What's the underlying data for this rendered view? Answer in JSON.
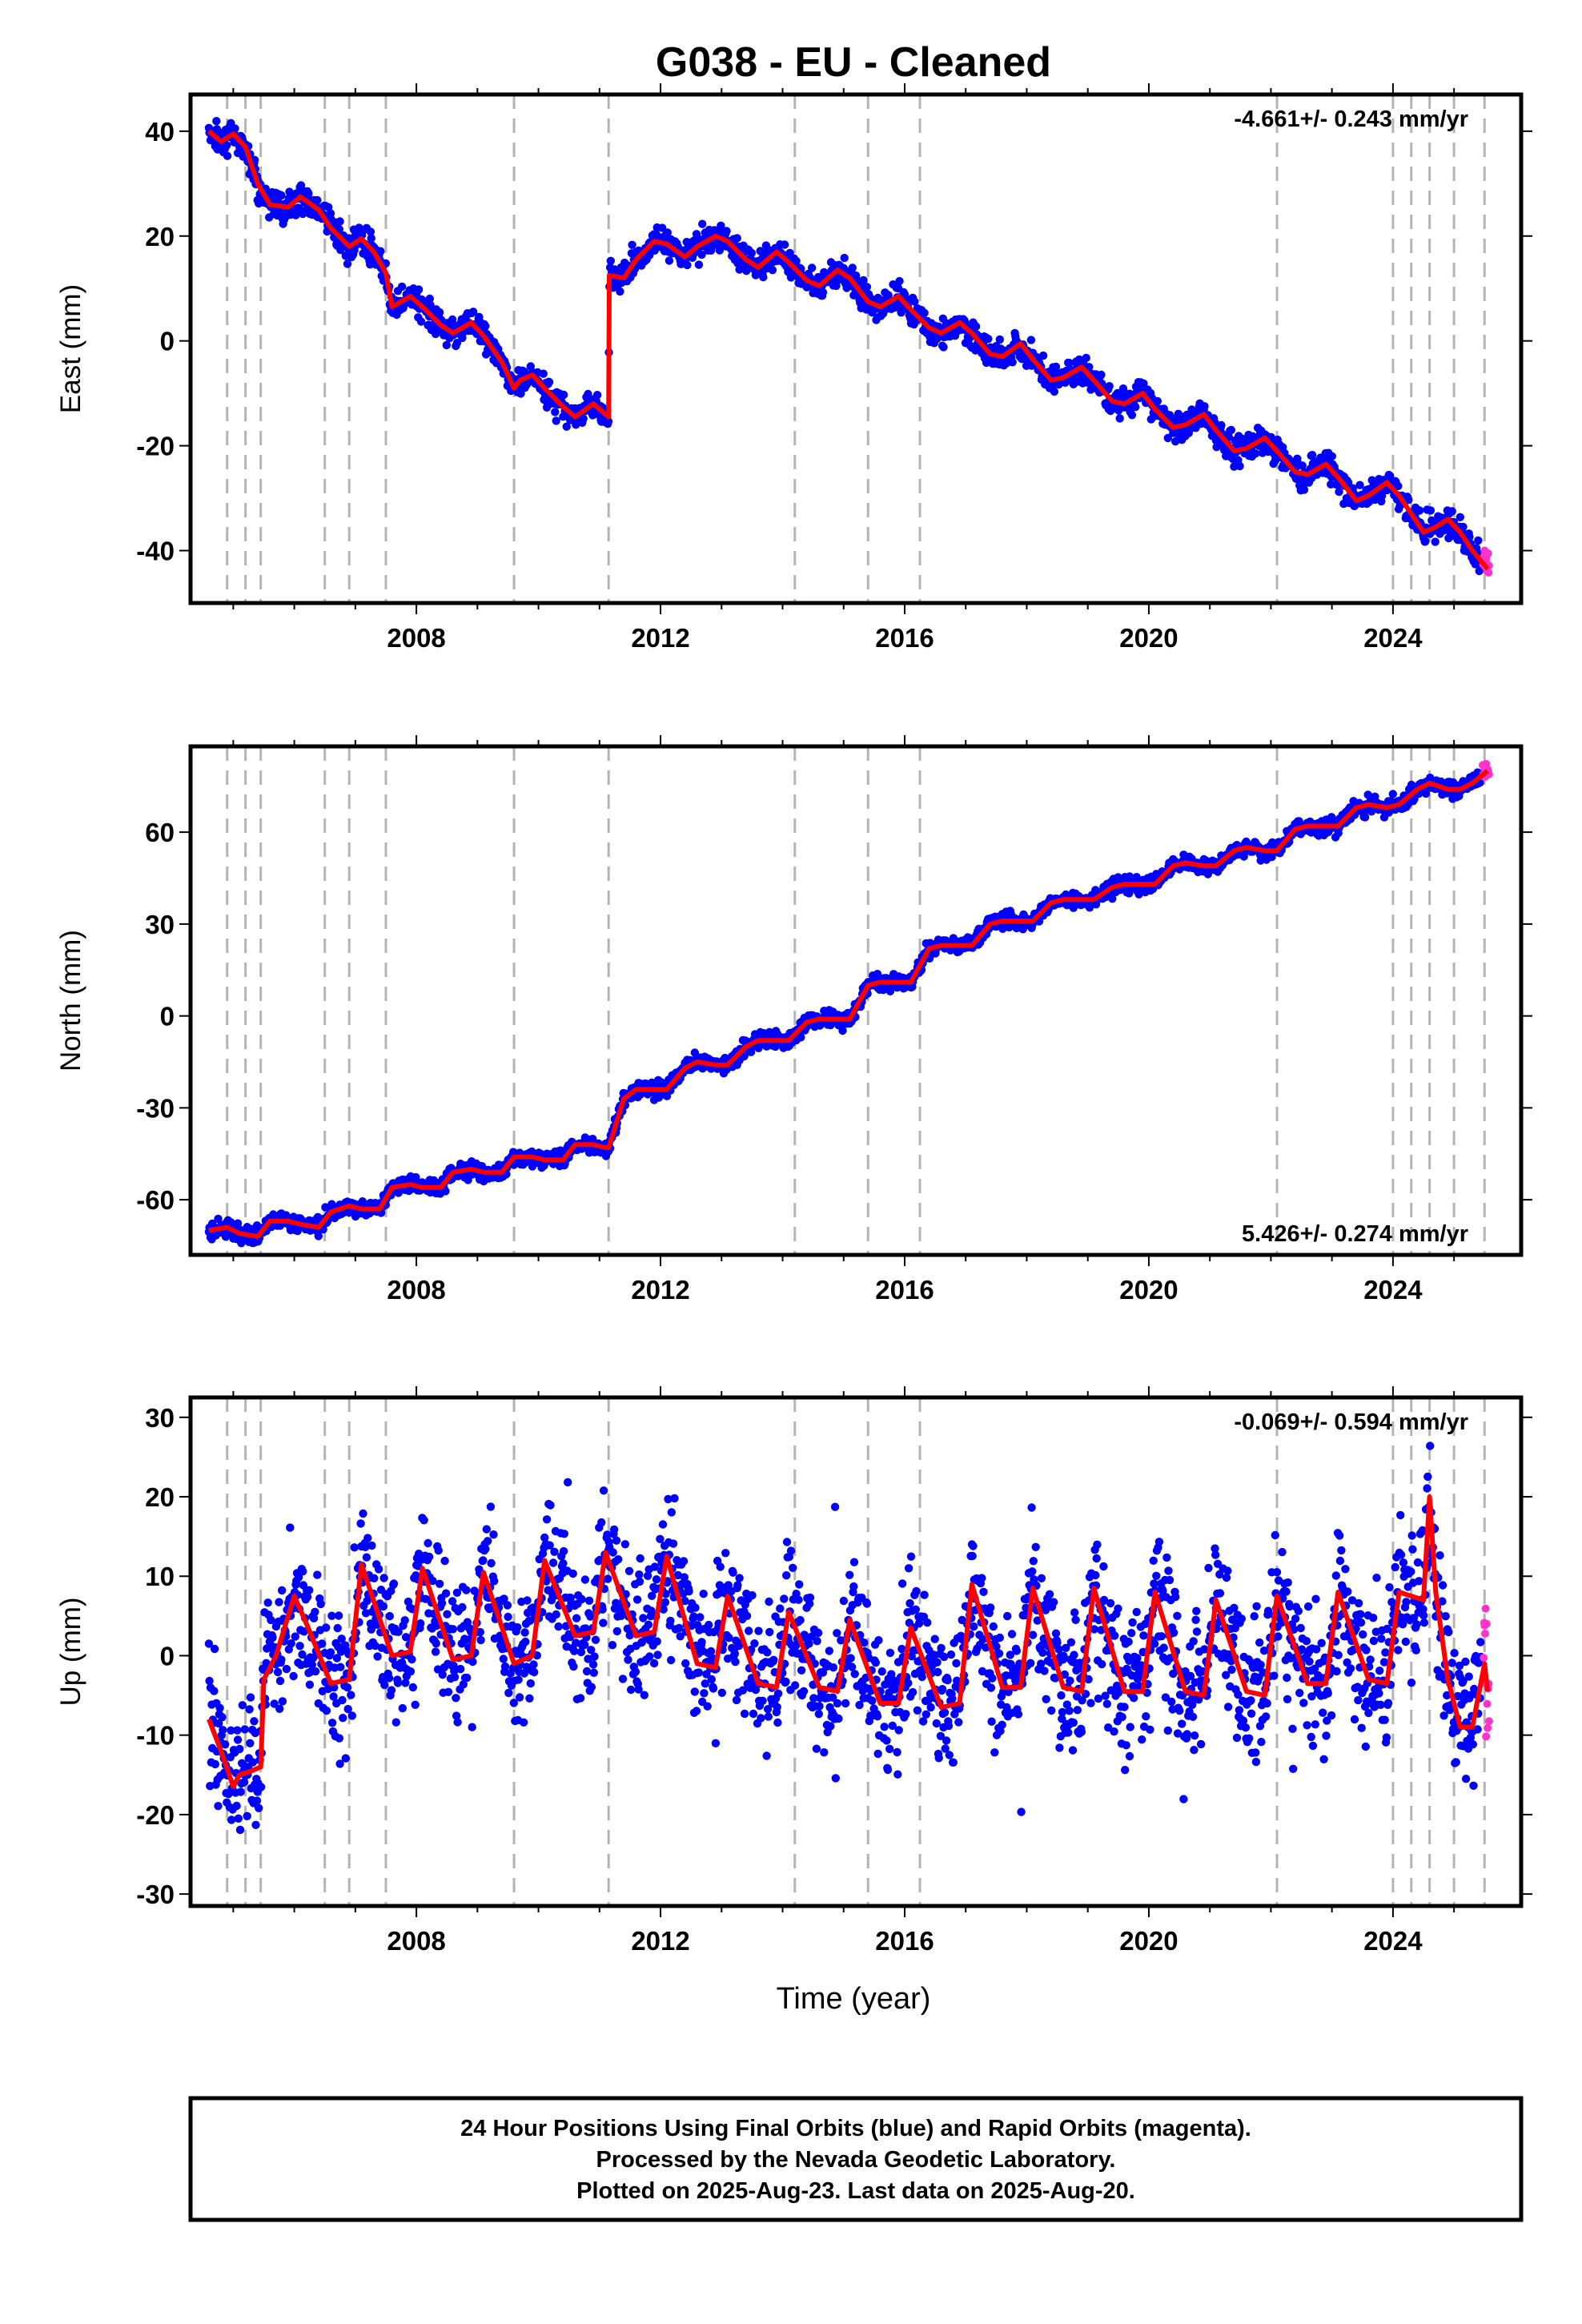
{
  "figure": {
    "title": "G038  - EU - Cleaned",
    "footer": [
      "24 Hour Positions Using Final Orbits (blue) and Rapid Orbits (magenta).",
      "Processed by the Nevada Geodetic Laboratory.",
      "Plotted on 2025-Aug-23. Last data on 2025-Aug-20."
    ]
  },
  "colors": {
    "final_points": "#0000ff",
    "rapid_points": "#ff33cc",
    "model_line": "#ff0000",
    "event_lines": "#b4b4b4",
    "axes": "#000000"
  },
  "chart_data": [
    {
      "type": "scatter",
      "component": "East",
      "ylabel": "East (mm)",
      "xlabel": "",
      "xlim": [
        2004.3,
        2026.1
      ],
      "ylim": [
        -50,
        47
      ],
      "xticks": [
        2008,
        2012,
        2016,
        2020,
        2024
      ],
      "xtick_labels": [
        "2008",
        "2012",
        "2016",
        "2020",
        "2024"
      ],
      "yticks": [
        40,
        20,
        0,
        -20,
        -40
      ],
      "ytick_labels": [
        "40",
        "20",
        "0",
        "-20",
        "-40"
      ],
      "rate_label": "-4.661+/- 0.243 mm/yr",
      "rate_position": "top-right",
      "event_lines": [
        2004.9,
        2005.2,
        2005.45,
        2006.5,
        2006.9,
        2007.5,
        2009.6,
        2011.15,
        2014.2,
        2015.4,
        2016.25,
        2022.1,
        2024.0,
        2024.3,
        2024.6,
        2025.0,
        2025.5
      ],
      "series": [
        {
          "role": "model",
          "x": [
            2004.6,
            2004.8,
            2005.0,
            2005.2,
            2005.4,
            2005.6,
            2005.9,
            2006.1,
            2006.4,
            2006.6,
            2006.9,
            2007.1,
            2007.3,
            2007.5,
            2007.6,
            2007.9,
            2008.1,
            2008.4,
            2008.6,
            2008.9,
            2009.1,
            2009.4,
            2009.6,
            2009.7,
            2009.9,
            2010.1,
            2010.4,
            2010.6,
            2010.9,
            2011.1,
            2011.15,
            2011.16,
            2011.4,
            2011.6,
            2011.9,
            2012.1,
            2012.4,
            2012.6,
            2012.9,
            2013.1,
            2013.4,
            2013.6,
            2013.9,
            2014.1,
            2014.4,
            2014.6,
            2014.9,
            2015.1,
            2015.4,
            2015.6,
            2015.9,
            2016.1,
            2016.4,
            2016.6,
            2016.9,
            2017.1,
            2017.4,
            2017.6,
            2017.9,
            2018.1,
            2018.4,
            2018.6,
            2018.9,
            2019.1,
            2019.4,
            2019.6,
            2019.9,
            2020.1,
            2020.4,
            2020.6,
            2020.9,
            2021.1,
            2021.4,
            2021.6,
            2021.9,
            2022.1,
            2022.4,
            2022.6,
            2022.9,
            2023.1,
            2023.4,
            2023.6,
            2023.9,
            2024.1,
            2024.3,
            2024.5,
            2024.7,
            2024.9,
            2025.1,
            2025.3,
            2025.55
          ],
          "y": [
            40,
            38,
            39.5,
            37,
            30,
            26,
            25.5,
            27.5,
            25,
            21.5,
            18,
            19.5,
            17,
            13,
            6.5,
            8.5,
            6.5,
            3,
            1.5,
            3.5,
            1,
            -4,
            -9,
            -7.5,
            -6.5,
            -9,
            -12.5,
            -14.5,
            -12,
            -14,
            -14.5,
            12.5,
            12,
            15.5,
            19,
            18.5,
            16,
            18,
            20,
            19,
            15.5,
            14,
            17,
            15,
            11.5,
            10.5,
            13.5,
            12,
            7.5,
            6.5,
            8.5,
            6,
            2.5,
            1.5,
            3.5,
            1.5,
            -2.5,
            -3,
            -0.5,
            -3.5,
            -7.5,
            -7,
            -5,
            -7.5,
            -11.5,
            -12,
            -10,
            -13,
            -16.5,
            -16,
            -14,
            -17,
            -21,
            -20.5,
            -18.5,
            -21,
            -25,
            -25.5,
            -23.5,
            -26,
            -30.5,
            -29.5,
            -27,
            -29.5,
            -33,
            -36.5,
            -35.5,
            -34,
            -36.5,
            -40,
            -43.5
          ]
        }
      ]
    },
    {
      "type": "scatter",
      "component": "North",
      "ylabel": "North (mm)",
      "xlabel": "",
      "xlim": [
        2004.3,
        2026.1
      ],
      "ylim": [
        -78,
        88
      ],
      "xticks": [
        2008,
        2012,
        2016,
        2020,
        2024
      ],
      "xtick_labels": [
        "2008",
        "2012",
        "2016",
        "2020",
        "2024"
      ],
      "yticks": [
        60,
        30,
        0,
        -30,
        -60
      ],
      "ytick_labels": [
        "60",
        "30",
        "0",
        "-30",
        "-60"
      ],
      "rate_label": "5.426+/- 0.274 mm/yr",
      "rate_position": "bottom-right",
      "event_lines": [
        2004.9,
        2005.2,
        2005.45,
        2006.5,
        2006.9,
        2007.5,
        2009.6,
        2011.15,
        2014.2,
        2015.4,
        2016.25,
        2022.1,
        2024.0,
        2024.3,
        2024.6,
        2025.0,
        2025.5
      ],
      "series": [
        {
          "role": "model",
          "x": [
            2004.6,
            2004.9,
            2005.1,
            2005.4,
            2005.6,
            2005.9,
            2006.1,
            2006.4,
            2006.6,
            2006.9,
            2007.1,
            2007.4,
            2007.6,
            2007.9,
            2008.1,
            2008.4,
            2008.6,
            2008.9,
            2009.1,
            2009.4,
            2009.6,
            2009.9,
            2010.1,
            2010.4,
            2010.6,
            2010.9,
            2011.1,
            2011.15,
            2011.4,
            2011.6,
            2011.9,
            2012.1,
            2012.4,
            2012.6,
            2012.9,
            2013.1,
            2013.4,
            2013.6,
            2013.9,
            2014.1,
            2014.4,
            2014.6,
            2014.9,
            2015.1,
            2015.4,
            2015.6,
            2015.9,
            2016.1,
            2016.4,
            2016.6,
            2016.9,
            2017.1,
            2017.4,
            2017.6,
            2017.9,
            2018.1,
            2018.4,
            2018.6,
            2018.9,
            2019.1,
            2019.4,
            2019.6,
            2019.9,
            2020.1,
            2020.4,
            2020.6,
            2020.9,
            2021.1,
            2021.4,
            2021.6,
            2021.9,
            2022.1,
            2022.4,
            2022.6,
            2022.9,
            2023.1,
            2023.4,
            2023.6,
            2023.9,
            2024.1,
            2024.4,
            2024.6,
            2024.9,
            2025.1,
            2025.3,
            2025.55
          ],
          "y": [
            -70,
            -69,
            -71,
            -72,
            -67,
            -67,
            -68,
            -69,
            -64,
            -62,
            -63,
            -63,
            -56,
            -55,
            -56,
            -56,
            -51,
            -50,
            -51,
            -51,
            -46,
            -46,
            -47,
            -47,
            -42,
            -42,
            -43,
            -43,
            -27,
            -24,
            -24,
            -24,
            -17,
            -15,
            -16,
            -16,
            -10,
            -8,
            -8,
            -8,
            -2,
            -1,
            -1,
            -1,
            10,
            11,
            11,
            11,
            22,
            23,
            23,
            23,
            30,
            31,
            31,
            31,
            37,
            38,
            38,
            38,
            42,
            43,
            43,
            43,
            49,
            50,
            49,
            49,
            54,
            55,
            54,
            54,
            61,
            62,
            62,
            62,
            68,
            69,
            68,
            69,
            74,
            76,
            74,
            74,
            76,
            80
          ]
        }
      ]
    },
    {
      "type": "scatter",
      "component": "Up",
      "ylabel": "Up (mm)",
      "xlabel": "Time (year)",
      "xlim": [
        2004.3,
        2026.1
      ],
      "ylim": [
        -31.5,
        32.5
      ],
      "xticks": [
        2008,
        2012,
        2016,
        2020,
        2024
      ],
      "xtick_labels": [
        "2008",
        "2012",
        "2016",
        "2020",
        "2024"
      ],
      "yticks": [
        30,
        20,
        10,
        0,
        -10,
        -20,
        -30
      ],
      "ytick_labels": [
        "30",
        "20",
        "10",
        "0",
        "-10",
        "-20",
        "-30"
      ],
      "rate_label": "-0.069+/- 0.594 mm/yr",
      "rate_position": "top-right",
      "event_lines": [
        2004.9,
        2005.2,
        2005.45,
        2006.5,
        2006.9,
        2007.5,
        2009.6,
        2011.15,
        2014.2,
        2015.4,
        2016.25,
        2022.1,
        2024.0,
        2024.3,
        2024.6,
        2025.0,
        2025.5
      ],
      "series": [
        {
          "role": "model",
          "x": [
            2004.6,
            2004.8,
            2005.0,
            2005.1,
            2005.3,
            2005.45,
            2005.5,
            2005.7,
            2006.0,
            2006.2,
            2006.6,
            2006.9,
            2007.1,
            2007.6,
            2007.9,
            2008.1,
            2008.6,
            2008.9,
            2009.1,
            2009.6,
            2009.9,
            2010.1,
            2010.6,
            2010.9,
            2011.1,
            2011.6,
            2011.9,
            2012.1,
            2012.6,
            2012.9,
            2013.1,
            2013.6,
            2013.9,
            2014.1,
            2014.6,
            2014.9,
            2015.1,
            2015.6,
            2015.9,
            2016.1,
            2016.6,
            2016.9,
            2017.1,
            2017.6,
            2017.9,
            2018.1,
            2018.6,
            2018.9,
            2019.1,
            2019.6,
            2019.9,
            2020.1,
            2020.6,
            2020.9,
            2021.1,
            2021.6,
            2021.9,
            2022.1,
            2022.6,
            2022.9,
            2023.1,
            2023.6,
            2023.9,
            2024.1,
            2024.5,
            2024.6,
            2024.7,
            2024.9,
            2025.1,
            2025.3,
            2025.5,
            2025.55
          ],
          "y": [
            -8,
            -12,
            -16.5,
            -15,
            -14.5,
            -14,
            -3,
            0,
            7.5,
            4,
            -3.5,
            -3,
            11.5,
            0,
            0.5,
            11,
            -0.5,
            0,
            10.5,
            -1,
            0,
            12,
            2.5,
            3,
            13,
            2.5,
            3,
            12.5,
            -1,
            -1.5,
            7.5,
            -3.5,
            -4,
            5.5,
            -4,
            -4.5,
            4.5,
            -6,
            -6,
            3.5,
            -6.5,
            -6,
            9,
            -4,
            -4,
            8.5,
            -4,
            -4.5,
            8.5,
            -4.5,
            -4.5,
            8,
            -4.5,
            -5,
            7,
            -4.5,
            -5,
            7.5,
            -3.5,
            -3.5,
            8,
            -3,
            -3.5,
            8,
            7,
            20,
            8,
            -3,
            -9,
            -9,
            -1,
            -4.5
          ]
        }
      ]
    }
  ]
}
